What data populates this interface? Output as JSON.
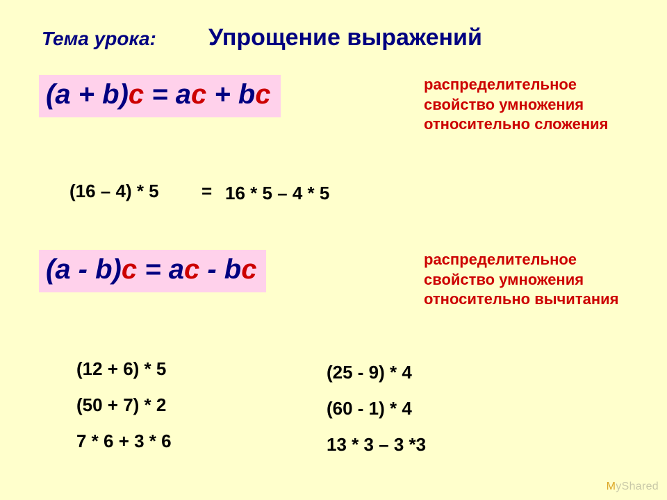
{
  "colors": {
    "background": "#ffffcc",
    "title": "#000080",
    "formula_bg": "#ffd1eb",
    "formula_text": "#000080",
    "formula_accent": "#cc0000",
    "desc": "#cc0000",
    "example": "#000000",
    "watermark": "#c8c8a8",
    "watermark_accent": "#dca728"
  },
  "typography": {
    "lesson_label_fontsize": 28,
    "title_fontsize": 34,
    "formula_fontsize": 40,
    "desc_fontsize": 22,
    "example_fontsize": 26,
    "exercise_fontsize": 26,
    "line_height": 2.0
  },
  "lesson_label": "Тема урока:",
  "title": "Упрощение выражений",
  "formula1": {
    "lhs_pre": "(a + b)",
    "lhs_c": "c",
    "eq": " = a",
    "rhs_c1": "c",
    "mid": " + b",
    "rhs_c2": "c"
  },
  "desc1": "распределительное свойство умножения относительно сложения",
  "example": {
    "left": "(16 – 4) * 5",
    "eq": "=",
    "right": "16 * 5 – 4 * 5"
  },
  "formula2": {
    "lhs_pre": "(a - b)",
    "lhs_c": "c",
    "eq": " = a",
    "rhs_c1": "c",
    "mid": " - b",
    "rhs_c2": "c"
  },
  "desc2": "распределительное свойство умножения относительно вычитания",
  "exercises_left": [
    "(12 + 6) * 5",
    "(50 + 7) * 2",
    "7 * 6 + 3 * 6"
  ],
  "exercises_right": [
    "(25 - 9) * 4",
    "(60 - 1) * 4",
    "13 * 3 – 3 *3"
  ],
  "watermark": {
    "pre": "",
    "accent": "M",
    "post": "yShared"
  }
}
